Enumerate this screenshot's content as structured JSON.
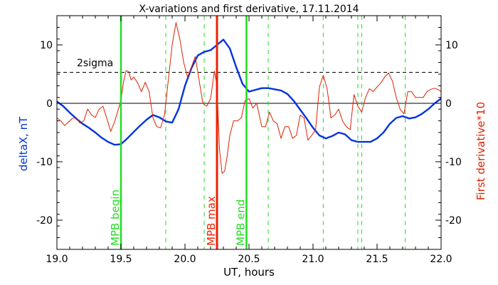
{
  "chart_data": {
    "type": "line",
    "title": "X-variations and first derivative, 17.11.2014",
    "xlabel": "UT, hours",
    "ylabel_left": "deltaX, nT",
    "ylabel_right": "First derivative*10",
    "xlim": [
      19.0,
      22.0
    ],
    "ylim": [
      -25,
      15
    ],
    "x_ticks": [
      19.0,
      19.5,
      20.0,
      20.5,
      21.0,
      21.5,
      22.0
    ],
    "x_tick_labels": [
      "19.0",
      "19.5",
      "20.0",
      "20.5",
      "21.0",
      "21.5",
      "22.0"
    ],
    "y_ticks": [
      -20,
      -10,
      0,
      10
    ],
    "y_tick_labels": [
      "-20",
      "-10",
      "0",
      "10"
    ],
    "grid": false,
    "zero_line": 0,
    "sigma_line": {
      "label": "2sigma",
      "value": 5.3
    },
    "colors": {
      "deltaX": "#0033dd",
      "derivative": "#dd2200",
      "mpb_begin_end": "#22dd22",
      "mpb_max": "#ee2200",
      "dashed_markers": "#22dd22",
      "ylabel_left": "#0033dd",
      "ylabel_right": "#dd2200"
    },
    "series": [
      {
        "key": "deltaX",
        "x": [
          19.0,
          19.05,
          19.1,
          19.15,
          19.2,
          19.25,
          19.3,
          19.35,
          19.4,
          19.45,
          19.5,
          19.55,
          19.6,
          19.65,
          19.7,
          19.75,
          19.8,
          19.85,
          19.9,
          19.95,
          20.0,
          20.05,
          20.1,
          20.15,
          20.2,
          20.25,
          20.3,
          20.35,
          20.4,
          20.45,
          20.5,
          20.55,
          20.6,
          20.65,
          20.7,
          20.75,
          20.8,
          20.85,
          20.9,
          20.95,
          21.0,
          21.05,
          21.1,
          21.15,
          21.2,
          21.25,
          21.3,
          21.35,
          21.4,
          21.45,
          21.5,
          21.55,
          21.6,
          21.65,
          21.7,
          21.75,
          21.8,
          21.85,
          21.9,
          21.95,
          22.0
        ],
        "y": [
          0.3,
          -0.5,
          -1.6,
          -2.6,
          -3.5,
          -4.2,
          -5.0,
          -5.9,
          -6.6,
          -7.1,
          -7.0,
          -6.0,
          -4.9,
          -3.8,
          -2.8,
          -2.0,
          -2.4,
          -3.1,
          -3.3,
          -1.0,
          3.0,
          6.0,
          8.2,
          8.8,
          9.1,
          10.0,
          10.9,
          9.4,
          6.2,
          3.3,
          2.0,
          2.3,
          2.6,
          2.6,
          2.4,
          2.2,
          1.6,
          0.4,
          -1.1,
          -2.6,
          -4.2,
          -5.5,
          -6.0,
          -5.6,
          -5.0,
          -5.3,
          -6.3,
          -6.6,
          -6.6,
          -6.6,
          -6.0,
          -5.0,
          -3.5,
          -2.5,
          -2.2,
          -2.6,
          -2.4,
          -1.8,
          -1.0,
          0.0,
          0.8
        ]
      },
      {
        "key": "derivative",
        "x": [
          19.0,
          19.03,
          19.06,
          19.09,
          19.12,
          19.15,
          19.18,
          19.21,
          19.24,
          19.27,
          19.3,
          19.33,
          19.36,
          19.39,
          19.42,
          19.45,
          19.48,
          19.5,
          19.52,
          19.54,
          19.56,
          19.58,
          19.6,
          19.63,
          19.66,
          19.69,
          19.72,
          19.75,
          19.78,
          19.81,
          19.84,
          19.87,
          19.9,
          19.93,
          19.96,
          19.99,
          20.02,
          20.05,
          20.08,
          20.11,
          20.14,
          20.17,
          20.2,
          20.23,
          20.25,
          20.27,
          20.29,
          20.31,
          20.33,
          20.35,
          20.38,
          20.41,
          20.44,
          20.47,
          20.5,
          20.53,
          20.56,
          20.6,
          20.63,
          20.66,
          20.69,
          20.72,
          20.75,
          20.78,
          20.81,
          20.84,
          20.87,
          20.9,
          20.93,
          20.96,
          20.99,
          21.02,
          21.05,
          21.08,
          21.11,
          21.14,
          21.17,
          21.2,
          21.23,
          21.26,
          21.29,
          21.32,
          21.35,
          21.38,
          21.41,
          21.44,
          21.47,
          21.5,
          21.53,
          21.56,
          21.59,
          21.62,
          21.65,
          21.68,
          21.71,
          21.74,
          21.77,
          21.8,
          21.83,
          21.86,
          21.89,
          21.92,
          21.95,
          21.98,
          22.0
        ],
        "y": [
          -2.5,
          -3.0,
          -3.8,
          -3.2,
          -2.6,
          -2.4,
          -3.4,
          -3.0,
          -1.0,
          -2.0,
          -2.4,
          -1.0,
          -0.5,
          -2.6,
          -4.8,
          -3.2,
          -1.0,
          0.5,
          3.6,
          5.6,
          5.4,
          4.0,
          4.5,
          3.5,
          2.0,
          3.6,
          2.0,
          -2.5,
          -4.0,
          -4.2,
          -2.0,
          4.0,
          10.0,
          13.8,
          11.0,
          7.0,
          4.5,
          6.2,
          8.0,
          4.0,
          0.0,
          -0.5,
          0.8,
          5.5,
          3.0,
          -8.0,
          -12.0,
          -11.6,
          -9.0,
          -5.5,
          -3.0,
          -3.0,
          -2.5,
          0.5,
          0.8,
          -0.8,
          0.0,
          -4.0,
          -4.0,
          -1.5,
          -3.0,
          -3.5,
          -6.0,
          -4.0,
          -4.0,
          -6.0,
          -5.5,
          -2.0,
          -2.5,
          -6.3,
          -5.5,
          -4.5,
          2.8,
          4.8,
          2.5,
          -2.5,
          -2.0,
          -1.0,
          -3.0,
          -4.0,
          -4.5,
          1.5,
          -0.5,
          -1.5,
          1.0,
          2.5,
          2.0,
          2.8,
          3.5,
          4.5,
          5.2,
          3.8,
          1.0,
          -1.0,
          -1.8,
          2.0,
          2.0,
          1.0,
          1.0,
          1.0,
          2.0,
          2.4,
          2.6,
          2.3,
          2.0
        ]
      }
    ],
    "markers": [
      {
        "x": 19.5,
        "style": "solid",
        "color": "#22dd22",
        "label": "MPB begin",
        "label_color": "#22dd22"
      },
      {
        "x": 20.25,
        "style": "solid",
        "color": "#ee2200",
        "label": "MPB max",
        "label_color": "#ee2200"
      },
      {
        "x": 20.48,
        "style": "solid",
        "color": "#22dd22",
        "label": "MPB end",
        "label_color": "#22dd22"
      },
      {
        "x": 19.85,
        "style": "dashed",
        "color": "#22dd22",
        "label": ""
      },
      {
        "x": 20.15,
        "style": "dashed",
        "color": "#22dd22",
        "label": ""
      },
      {
        "x": 20.65,
        "style": "dashed",
        "color": "#22dd22",
        "label": ""
      },
      {
        "x": 21.08,
        "style": "dashed",
        "color": "#22dd22",
        "label": ""
      },
      {
        "x": 21.35,
        "style": "dashed",
        "color": "#22dd22",
        "label": ""
      },
      {
        "x": 21.38,
        "style": "dashed",
        "color": "#22dd22",
        "label": ""
      },
      {
        "x": 21.72,
        "style": "dashed",
        "color": "#22dd22",
        "label": ""
      }
    ]
  }
}
